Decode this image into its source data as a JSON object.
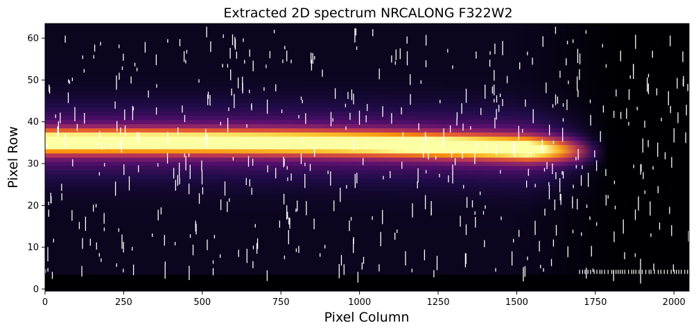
{
  "chart_data": {
    "type": "heatmap",
    "title": "Extracted 2D spectrum NRCALONG F322W2",
    "xlabel": "Pixel Column",
    "ylabel": "Pixel Row",
    "xlim": [
      0,
      2048
    ],
    "ylim": [
      -0.5,
      63.5
    ],
    "x_ticks": [
      0,
      250,
      500,
      750,
      1000,
      1250,
      1500,
      1750,
      2000
    ],
    "y_ticks": [
      0,
      10,
      20,
      30,
      40,
      50,
      60
    ],
    "colormap": "inferno",
    "grid": false,
    "legend": "none",
    "data_rows": [
      4,
      63
    ],
    "background_level": 0.05,
    "trace": {
      "center_row_at_x0": 35.3,
      "center_row_at_end": 32.8,
      "end_column": 1760,
      "core_fwhm_rows": 4.5,
      "halo_width_rows": 7,
      "peak_level": 1.0,
      "halo_level": 0.28
    },
    "cosmic_rays": {
      "count": 520,
      "color": "#ffffff"
    },
    "flagged_bottom_row": {
      "row": 4,
      "x_range": [
        1700,
        2048
      ]
    }
  }
}
